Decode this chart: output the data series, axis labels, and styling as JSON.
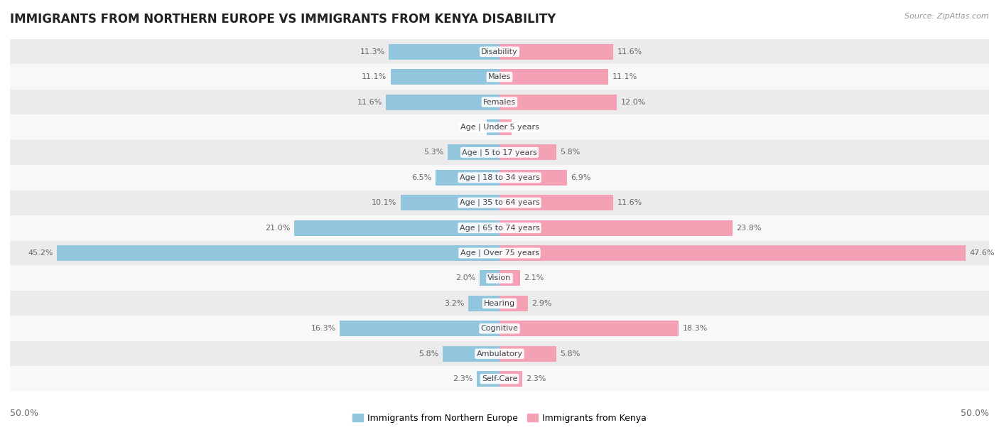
{
  "title": "IMMIGRANTS FROM NORTHERN EUROPE VS IMMIGRANTS FROM KENYA DISABILITY",
  "source": "Source: ZipAtlas.com",
  "categories": [
    "Disability",
    "Males",
    "Females",
    "Age | Under 5 years",
    "Age | 5 to 17 years",
    "Age | 18 to 34 years",
    "Age | 35 to 64 years",
    "Age | 65 to 74 years",
    "Age | Over 75 years",
    "Vision",
    "Hearing",
    "Cognitive",
    "Ambulatory",
    "Self-Care"
  ],
  "left_values": [
    11.3,
    11.1,
    11.6,
    1.3,
    5.3,
    6.5,
    10.1,
    21.0,
    45.2,
    2.0,
    3.2,
    16.3,
    5.8,
    2.3
  ],
  "right_values": [
    11.6,
    11.1,
    12.0,
    1.2,
    5.8,
    6.9,
    11.6,
    23.8,
    47.6,
    2.1,
    2.9,
    18.3,
    5.8,
    2.3
  ],
  "left_color": "#92c5de",
  "right_color": "#f4a0b5",
  "left_label": "Immigrants from Northern Europe",
  "right_label": "Immigrants from Kenya",
  "axis_max": 50.0,
  "bar_height": 0.62,
  "bg_color_odd": "#ebebeb",
  "bg_color_even": "#f8f8f8",
  "title_fontsize": 12,
  "value_fontsize": 8,
  "category_fontsize": 8
}
